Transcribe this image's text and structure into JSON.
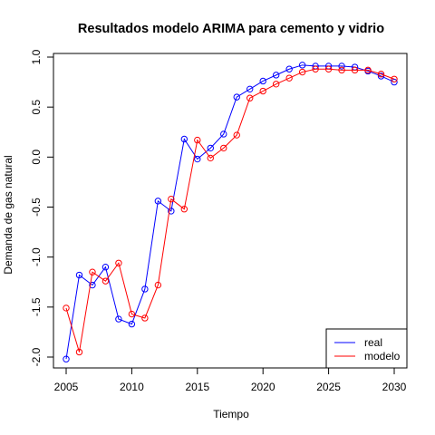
{
  "chart_data": {
    "type": "line",
    "title": "Resultados modelo ARIMA para cemento y vidrio",
    "xlabel": "Tiempo",
    "ylabel": "Demanda de gas natural",
    "xlim": [
      2005,
      2030
    ],
    "ylim": [
      -2.0,
      1.0
    ],
    "x_ticks": [
      "2005",
      "2010",
      "2015",
      "2020",
      "2025",
      "2030"
    ],
    "y_ticks": [
      "-2.0",
      "-1.5",
      "-1.0",
      "-0.5",
      "0.0",
      "0.5",
      "1.0"
    ],
    "grid": false,
    "legend_position": "bottom-right",
    "x": [
      2005,
      2006,
      2007,
      2008,
      2009,
      2010,
      2011,
      2012,
      2013,
      2014,
      2015,
      2016,
      2017,
      2018,
      2019,
      2020,
      2021,
      2022,
      2023,
      2024,
      2025,
      2026,
      2027,
      2028,
      2029,
      2030
    ],
    "series": [
      {
        "name": "real",
        "color": "#0000ff",
        "values": [
          -2.02,
          -1.18,
          -1.28,
          -1.1,
          -1.62,
          -1.67,
          -1.32,
          -0.44,
          -0.54,
          0.18,
          -0.02,
          0.09,
          0.23,
          0.6,
          0.68,
          0.76,
          0.82,
          0.88,
          0.92,
          0.91,
          0.91,
          0.91,
          0.9,
          0.86,
          0.81,
          0.75
        ]
      },
      {
        "name": "modelo",
        "color": "#ff0000",
        "values": [
          -1.51,
          -1.95,
          -1.15,
          -1.24,
          -1.06,
          -1.57,
          -1.61,
          -1.28,
          -0.42,
          -0.52,
          0.17,
          -0.01,
          0.09,
          0.22,
          0.59,
          0.66,
          0.73,
          0.79,
          0.85,
          0.88,
          0.88,
          0.87,
          0.87,
          0.87,
          0.83,
          0.78
        ]
      }
    ]
  }
}
